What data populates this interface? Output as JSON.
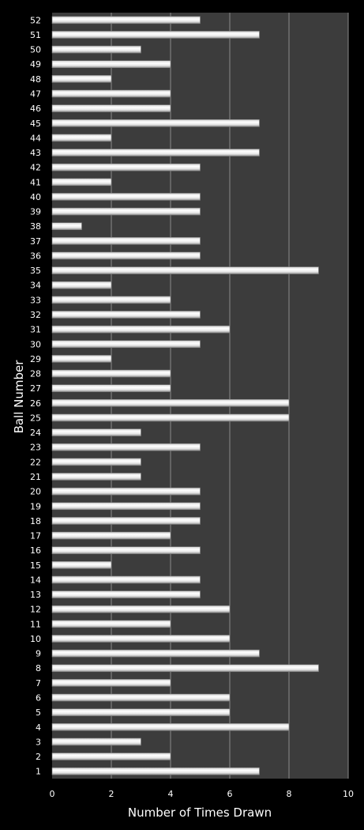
{
  "chart_data": {
    "type": "bar",
    "orientation": "horizontal",
    "xlabel": "Number of Times Drawn",
    "ylabel": "Ball Number",
    "xlim": [
      0,
      10
    ],
    "x_ticks": [
      "0",
      "2",
      "4",
      "6",
      "8",
      "10"
    ],
    "grid": "vertical",
    "categories": [
      "1",
      "2",
      "3",
      "4",
      "5",
      "6",
      "7",
      "8",
      "9",
      "10",
      "11",
      "12",
      "13",
      "14",
      "15",
      "16",
      "17",
      "18",
      "19",
      "20",
      "21",
      "22",
      "23",
      "24",
      "25",
      "26",
      "27",
      "28",
      "29",
      "30",
      "31",
      "32",
      "33",
      "34",
      "35",
      "36",
      "37",
      "38",
      "39",
      "40",
      "41",
      "42",
      "43",
      "44",
      "45",
      "46",
      "47",
      "48",
      "49",
      "50",
      "51",
      "52"
    ],
    "values": [
      7,
      4,
      3,
      8,
      6,
      6,
      4,
      9,
      7,
      6,
      4,
      6,
      5,
      5,
      2,
      5,
      4,
      5,
      5,
      5,
      3,
      3,
      5,
      3,
      8,
      8,
      4,
      4,
      2,
      5,
      6,
      5,
      4,
      2,
      9,
      5,
      5,
      1,
      5,
      5,
      2,
      5,
      7,
      2,
      7,
      4,
      4,
      2,
      4,
      3,
      7,
      5
    ],
    "colors": {
      "background": "#000000",
      "plot_area": "#3c3c3c",
      "gridline": "#8a8a8a",
      "bar_light": "#ffffff",
      "bar_dark": "#9a9a9a",
      "text": "#ffffff"
    }
  }
}
